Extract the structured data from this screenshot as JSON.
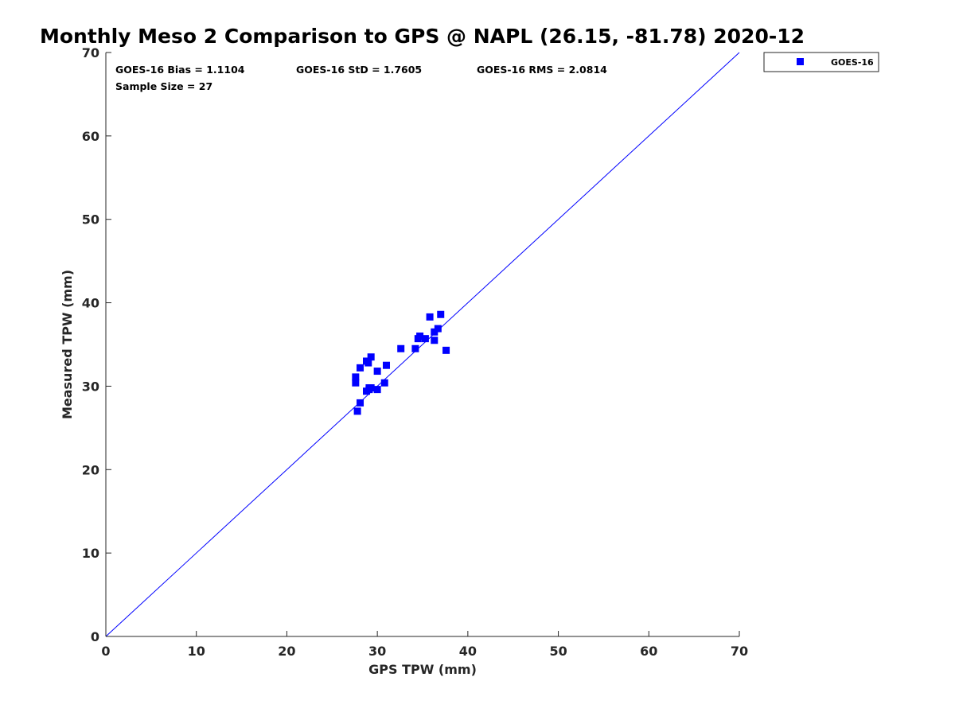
{
  "chart_data": {
    "type": "scatter",
    "title": "Monthly Meso 2 Comparison to GPS @ NAPL (26.15, -81.78) 2020-12",
    "xlabel": "GPS TPW (mm)",
    "ylabel": "Measured TPW (mm)",
    "xlim": [
      0,
      70
    ],
    "ylim": [
      0,
      70
    ],
    "xticks": [
      0,
      10,
      20,
      30,
      40,
      50,
      60,
      70
    ],
    "yticks": [
      0,
      10,
      20,
      30,
      40,
      50,
      60,
      70
    ],
    "grid": false,
    "legend_position": "top-right, outside plot",
    "reference_line": {
      "x": [
        0,
        70
      ],
      "y": [
        0,
        70
      ],
      "color": "#0000ff"
    },
    "annotations": [
      "GOES-16 Bias = 1.1104",
      "GOES-16 StD = 1.7605",
      "GOES-16 RMS = 2.0814",
      "Sample Size = 27"
    ],
    "series": [
      {
        "name": "GOES-16",
        "color": "#0000ff",
        "marker": "square",
        "points": [
          [
            27.6,
            31.1
          ],
          [
            27.6,
            30.4
          ],
          [
            28.1,
            32.2
          ],
          [
            27.8,
            27.0
          ],
          [
            28.1,
            28.0
          ],
          [
            28.8,
            33.0
          ],
          [
            29.0,
            32.8
          ],
          [
            29.3,
            33.5
          ],
          [
            28.8,
            29.4
          ],
          [
            29.1,
            29.6
          ],
          [
            29.3,
            29.8
          ],
          [
            30.0,
            29.6
          ],
          [
            30.0,
            31.8
          ],
          [
            30.8,
            30.4
          ],
          [
            31.0,
            32.5
          ],
          [
            32.6,
            34.5
          ],
          [
            34.2,
            34.5
          ],
          [
            34.5,
            35.7
          ],
          [
            34.7,
            36.0
          ],
          [
            35.3,
            35.7
          ],
          [
            35.8,
            38.3
          ],
          [
            36.3,
            35.5
          ],
          [
            36.3,
            36.5
          ],
          [
            36.7,
            36.9
          ],
          [
            37.0,
            38.6
          ],
          [
            37.6,
            34.3
          ],
          [
            29.1,
            29.8
          ]
        ]
      }
    ]
  }
}
